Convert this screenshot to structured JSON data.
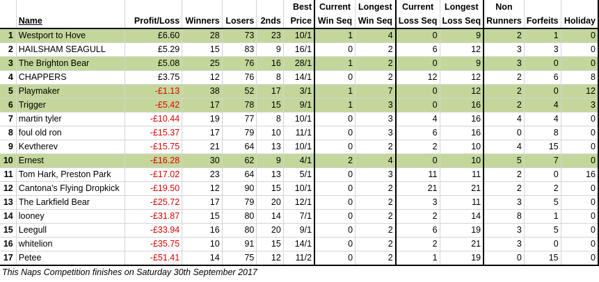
{
  "header": {
    "row1": [
      "",
      "",
      "",
      "",
      "",
      "",
      "Best",
      "Current",
      "Longest",
      "Current",
      "Longest",
      "Non",
      "",
      ""
    ],
    "row2": [
      "",
      "Name",
      "Profit/Loss",
      "Winners",
      "Losers",
      "2nds",
      "Price",
      "Win Seq",
      "Win Seq",
      "Loss Seq",
      "Loss Seq",
      "Runners",
      "Forfeits",
      "Holiday"
    ]
  },
  "rows": [
    {
      "rank": "1",
      "name": "Westport to Hove",
      "pl": "£6.60",
      "neg": false,
      "winners": "28",
      "losers": "73",
      "seconds": "23",
      "best": "10/1",
      "cur_win": "1",
      "long_win": "4",
      "cur_loss": "0",
      "long_loss": "9",
      "non_runners": "2",
      "forfeits": "1",
      "holiday": "0",
      "hl": true
    },
    {
      "rank": "2",
      "name": "HAILSHAM SEAGULL",
      "pl": "£5.29",
      "neg": false,
      "winners": "15",
      "losers": "83",
      "seconds": "9",
      "best": "16/1",
      "cur_win": "0",
      "long_win": "2",
      "cur_loss": "6",
      "long_loss": "12",
      "non_runners": "3",
      "forfeits": "3",
      "holiday": "0",
      "hl": false
    },
    {
      "rank": "3",
      "name": "The Brighton Bear",
      "pl": "£5.08",
      "neg": false,
      "winners": "25",
      "losers": "76",
      "seconds": "16",
      "best": "28/1",
      "cur_win": "1",
      "long_win": "2",
      "cur_loss": "0",
      "long_loss": "9",
      "non_runners": "3",
      "forfeits": "0",
      "holiday": "0",
      "hl": true
    },
    {
      "rank": "4",
      "name": "CHAPPERS",
      "pl": "£3.75",
      "neg": false,
      "winners": "12",
      "losers": "76",
      "seconds": "8",
      "best": "14/1",
      "cur_win": "0",
      "long_win": "2",
      "cur_loss": "12",
      "long_loss": "12",
      "non_runners": "2",
      "forfeits": "6",
      "holiday": "8",
      "hl": false
    },
    {
      "rank": "5",
      "name": "Playmaker",
      "pl": "-£1.13",
      "neg": true,
      "winners": "38",
      "losers": "52",
      "seconds": "17",
      "best": "3/1",
      "cur_win": "1",
      "long_win": "7",
      "cur_loss": "0",
      "long_loss": "12",
      "non_runners": "2",
      "forfeits": "0",
      "holiday": "12",
      "hl": true
    },
    {
      "rank": "6",
      "name": "Trigger",
      "pl": "-£5.42",
      "neg": true,
      "winners": "17",
      "losers": "78",
      "seconds": "15",
      "best": "9/1",
      "cur_win": "1",
      "long_win": "3",
      "cur_loss": "0",
      "long_loss": "16",
      "non_runners": "2",
      "forfeits": "4",
      "holiday": "3",
      "hl": true
    },
    {
      "rank": "7",
      "name": "martin tyler",
      "pl": "-£10.44",
      "neg": true,
      "winners": "19",
      "losers": "77",
      "seconds": "8",
      "best": "10/1",
      "cur_win": "0",
      "long_win": "3",
      "cur_loss": "4",
      "long_loss": "16",
      "non_runners": "4",
      "forfeits": "4",
      "holiday": "0",
      "hl": false
    },
    {
      "rank": "8",
      "name": "foul old ron",
      "pl": "-£15.37",
      "neg": true,
      "winners": "17",
      "losers": "79",
      "seconds": "10",
      "best": "11/1",
      "cur_win": "0",
      "long_win": "3",
      "cur_loss": "6",
      "long_loss": "16",
      "non_runners": "0",
      "forfeits": "8",
      "holiday": "0",
      "hl": false
    },
    {
      "rank": "9",
      "name": "Kevtherev",
      "pl": "-£15.75",
      "neg": true,
      "winners": "21",
      "losers": "64",
      "seconds": "13",
      "best": "10/1",
      "cur_win": "0",
      "long_win": "2",
      "cur_loss": "2",
      "long_loss": "10",
      "non_runners": "4",
      "forfeits": "15",
      "holiday": "0",
      "hl": false
    },
    {
      "rank": "10",
      "name": "Ernest",
      "pl": "-£16.28",
      "neg": true,
      "winners": "30",
      "losers": "62",
      "seconds": "9",
      "best": "4/1",
      "cur_win": "2",
      "long_win": "4",
      "cur_loss": "0",
      "long_loss": "10",
      "non_runners": "5",
      "forfeits": "7",
      "holiday": "0",
      "hl": true
    },
    {
      "rank": "11",
      "name": "Tom Hark, Preston Park",
      "pl": "-£17.02",
      "neg": true,
      "winners": "23",
      "losers": "64",
      "seconds": "13",
      "best": "5/1",
      "cur_win": "0",
      "long_win": "3",
      "cur_loss": "11",
      "long_loss": "11",
      "non_runners": "2",
      "forfeits": "0",
      "holiday": "16",
      "hl": false
    },
    {
      "rank": "12",
      "name": "Cantona's Flying Dropkick",
      "pl": "-£19.50",
      "neg": true,
      "winners": "12",
      "losers": "90",
      "seconds": "15",
      "best": "10/1",
      "cur_win": "0",
      "long_win": "2",
      "cur_loss": "21",
      "long_loss": "21",
      "non_runners": "2",
      "forfeits": "2",
      "holiday": "0",
      "hl": false
    },
    {
      "rank": "13",
      "name": "The Larkfield Bear",
      "pl": "-£25.72",
      "neg": true,
      "winners": "17",
      "losers": "79",
      "seconds": "20",
      "best": "12/1",
      "cur_win": "0",
      "long_win": "2",
      "cur_loss": "3",
      "long_loss": "11",
      "non_runners": "3",
      "forfeits": "5",
      "holiday": "0",
      "hl": false
    },
    {
      "rank": "14",
      "name": "looney",
      "pl": "-£31.87",
      "neg": true,
      "winners": "15",
      "losers": "80",
      "seconds": "14",
      "best": "7/1",
      "cur_win": "0",
      "long_win": "2",
      "cur_loss": "2",
      "long_loss": "14",
      "non_runners": "8",
      "forfeits": "1",
      "holiday": "0",
      "hl": false
    },
    {
      "rank": "15",
      "name": "Leegull",
      "pl": "-£33.94",
      "neg": true,
      "winners": "16",
      "losers": "80",
      "seconds": "20",
      "best": "9/1",
      "cur_win": "0",
      "long_win": "2",
      "cur_loss": "6",
      "long_loss": "19",
      "non_runners": "3",
      "forfeits": "5",
      "holiday": "0",
      "hl": false
    },
    {
      "rank": "16",
      "name": "whitelion",
      "pl": "-£35.75",
      "neg": true,
      "winners": "10",
      "losers": "91",
      "seconds": "15",
      "best": "14/1",
      "cur_win": "0",
      "long_win": "2",
      "cur_loss": "2",
      "long_loss": "21",
      "non_runners": "3",
      "forfeits": "0",
      "holiday": "0",
      "hl": false
    },
    {
      "rank": "17",
      "name": "Petee",
      "pl": "-£51.41",
      "neg": true,
      "winners": "14",
      "losers": "75",
      "seconds": "12",
      "best": "11/2",
      "cur_win": "0",
      "long_win": "2",
      "cur_loss": "1",
      "long_loss": "19",
      "non_runners": "0",
      "forfeits": "15",
      "holiday": "0",
      "hl": false
    }
  ],
  "footer": "This Naps Competition finishes on Saturday 30th September 2017",
  "colors": {
    "highlight": "#c4d79b",
    "negative": "#e00000"
  }
}
